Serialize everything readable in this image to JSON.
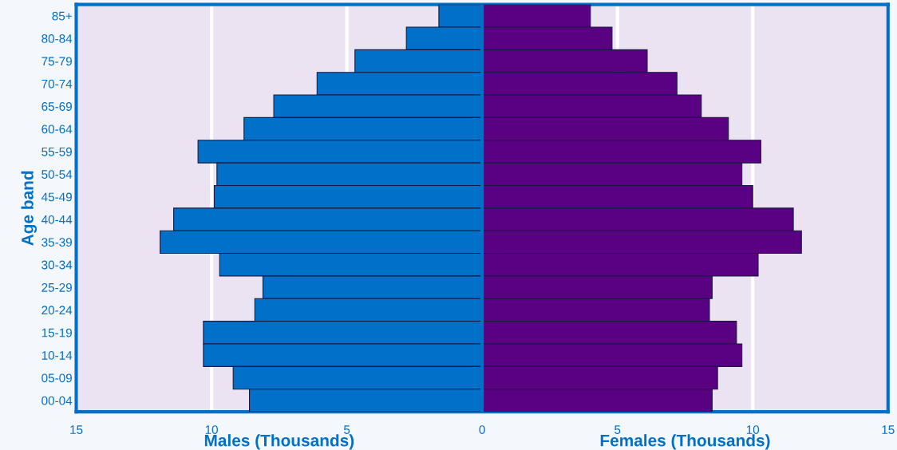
{
  "chart_data": {
    "type": "bar",
    "orientation": "horizontal",
    "ylabel": "Age band",
    "categories": [
      "85+",
      "80-84",
      "75-79",
      "70-74",
      "65-69",
      "60-64",
      "55-59",
      "50-54",
      "45-49",
      "40-44",
      "35-39",
      "30-34",
      "25-29",
      "20-24",
      "15-19",
      "10-14",
      "05-09",
      "00-04"
    ],
    "series": [
      {
        "color": "#0070c8",
        "values": [
          -1.6,
          -2.8,
          -4.7,
          -6.1,
          -7.7,
          -8.8,
          -10.5,
          -9.8,
          -9.9,
          -11.4,
          -11.9,
          -9.7,
          -8.1,
          -8.4,
          -10.3,
          -10.3,
          -9.2,
          -8.6
        ]
      },
      {
        "color": "#5a0082",
        "values": [
          4.0,
          4.8,
          6.1,
          7.2,
          8.1,
          9.1,
          10.3,
          9.6,
          10.0,
          11.5,
          11.8,
          10.2,
          8.5,
          8.4,
          9.4,
          9.6,
          8.7,
          8.5
        ]
      }
    ],
    "xlim": [
      -15,
      15
    ],
    "xticks": [
      {
        "value": -15,
        "label": "15"
      },
      {
        "value": -10,
        "label": "10"
      },
      {
        "value": -5,
        "label": "5"
      },
      0,
      5,
      10,
      15
    ],
    "stacked": true,
    "grid": "x",
    "ref_lines": [
      {
        "axis": "x",
        "value": 0,
        "color": "#0070c8"
      }
    ],
    "annotations": [
      "Males (Thousands)",
      "Females (Thousands)"
    ]
  }
}
